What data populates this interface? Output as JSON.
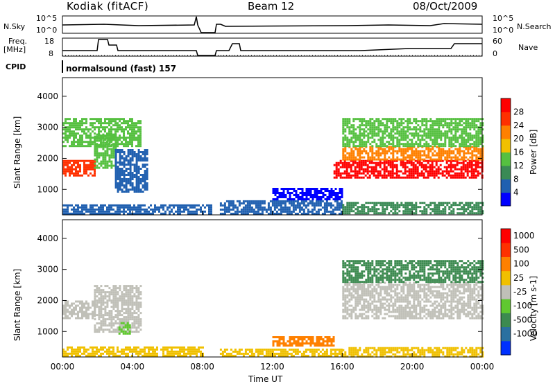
{
  "header": {
    "station": "Kodiak (fitACF)",
    "beam": "Beam 12",
    "date": "08/Oct/2009"
  },
  "top_panels": {
    "nsky_label": "N.Sky",
    "nsearch_label": "N.Search",
    "freq_label_line1": "Freq.",
    "freq_label_line2": "[MHz]",
    "nave_label": "Nave",
    "cpid_label": "CPID",
    "cpid_text": "normalsound (fast) 157",
    "noise_ticks": [
      "10^5",
      "10^0"
    ],
    "freq_ticks": [
      "18",
      "8"
    ],
    "nave_ticks": [
      "60",
      "0"
    ]
  },
  "chart_data": [
    {
      "type": "heatmap",
      "title": "",
      "xlabel": "Time UT",
      "ylabel": "Slant Range [km]",
      "x_ticks": [
        "00:00",
        "04:00",
        "08:00",
        "12:00",
        "16:00",
        "20:00",
        "00:00"
      ],
      "y_ticks": [
        1000,
        2000,
        3000,
        4000
      ],
      "xlim": [
        0,
        24
      ],
      "ylim": [
        180,
        4600
      ],
      "colorbar_label": "Power [dB]",
      "colorbar_ticks": [
        "4",
        "8",
        "12",
        "16",
        "20",
        "24",
        "28"
      ],
      "colors": [
        "#0000ff",
        "#2060b0",
        "#3a8a55",
        "#55c040",
        "#f0c000",
        "#ff8000",
        "#ff3000",
        "#ff0000"
      ],
      "regions": [
        {
          "t": [
            0.0,
            1.8
          ],
          "r": [
            1450,
            1950
          ],
          "level": 6
        },
        {
          "t": [
            1.8,
            3.0
          ],
          "r": [
            1700,
            2800
          ],
          "level": 3
        },
        {
          "t": [
            3.0,
            4.8
          ],
          "r": [
            900,
            2300
          ],
          "level": 1
        },
        {
          "t": [
            0.0,
            4.5
          ],
          "r": [
            2400,
            3300
          ],
          "level": 3
        },
        {
          "t": [
            0.0,
            8.5
          ],
          "r": [
            200,
            520
          ],
          "level": 1
        },
        {
          "t": [
            9.0,
            16.0
          ],
          "r": [
            200,
            650
          ],
          "level": 1
        },
        {
          "t": [
            12.0,
            16.0
          ],
          "r": [
            650,
            1050
          ],
          "level": 0
        },
        {
          "t": [
            15.5,
            24.0
          ],
          "r": [
            1350,
            1950
          ],
          "level": 7
        },
        {
          "t": [
            16.0,
            24.0
          ],
          "r": [
            1950,
            2400
          ],
          "level": 5
        },
        {
          "t": [
            16.0,
            24.0
          ],
          "r": [
            2400,
            3300
          ],
          "level": 3
        },
        {
          "t": [
            16.0,
            24.0
          ],
          "r": [
            200,
            600
          ],
          "level": 2
        }
      ]
    },
    {
      "type": "heatmap",
      "title": "",
      "xlabel": "Time UT",
      "ylabel": "Slant Range [km]",
      "x_ticks": [
        "00:00",
        "04:00",
        "08:00",
        "12:00",
        "16:00",
        "20:00",
        "00:00"
      ],
      "y_ticks": [
        1000,
        2000,
        3000,
        4000
      ],
      "xlim": [
        0,
        24
      ],
      "ylim": [
        180,
        4600
      ],
      "colorbar_label": "Velocity [m s-1]",
      "colorbar_ticks": [
        "1000",
        "500",
        "100",
        "25",
        "-25",
        "-100",
        "-500",
        "-1000"
      ],
      "colors": [
        "#0030ff",
        "#2a70a0",
        "#3c8a50",
        "#60c830",
        "#c0c0b8",
        "#f0c000",
        "#ff8000",
        "#ff3000",
        "#ff0000"
      ],
      "regions": [
        {
          "t": [
            0.0,
            1.8
          ],
          "r": [
            1450,
            2000
          ],
          "level": 4
        },
        {
          "t": [
            1.8,
            4.5
          ],
          "r": [
            1000,
            2500
          ],
          "level": 4
        },
        {
          "t": [
            3.2,
            3.8
          ],
          "r": [
            900,
            1300
          ],
          "level": 3
        },
        {
          "t": [
            0.0,
            8.0
          ],
          "r": [
            200,
            520
          ],
          "level": 5
        },
        {
          "t": [
            9.0,
            16.0
          ],
          "r": [
            200,
            450
          ],
          "level": 5
        },
        {
          "t": [
            12.0,
            15.5
          ],
          "r": [
            550,
            850
          ],
          "level": 6
        },
        {
          "t": [
            16.0,
            24.0
          ],
          "r": [
            1400,
            2600
          ],
          "level": 4
        },
        {
          "t": [
            16.0,
            24.0
          ],
          "r": [
            2600,
            3300
          ],
          "level": 2
        },
        {
          "t": [
            16.0,
            24.0
          ],
          "r": [
            200,
            500
          ],
          "level": 5
        }
      ]
    }
  ]
}
